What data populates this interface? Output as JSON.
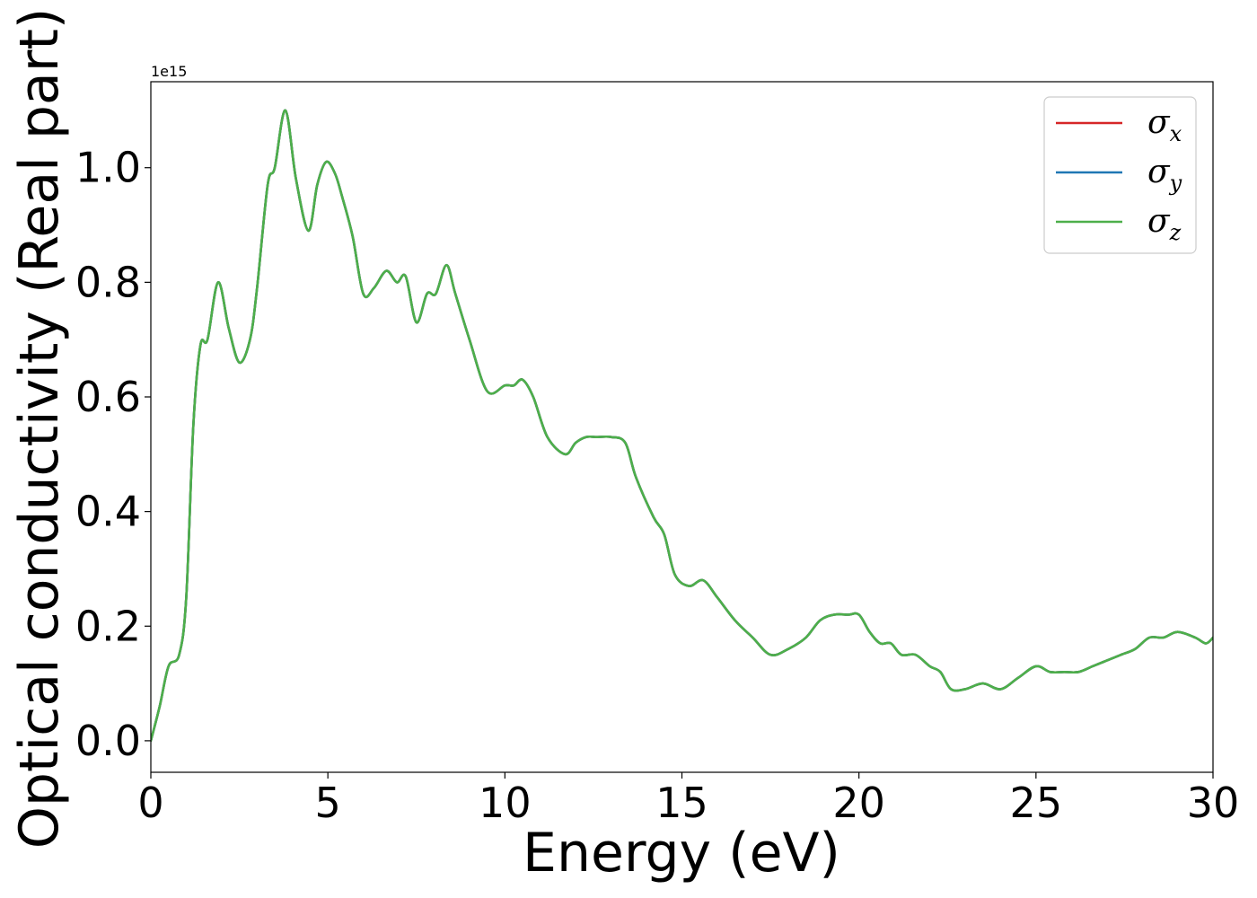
{
  "chart_data": {
    "type": "line",
    "xlabel": "Energy (eV)",
    "ylabel": "Optical conductivity (Real part)",
    "offset_text": "1e15",
    "xlim": [
      0,
      30
    ],
    "ylim": [
      -0.055,
      1.15
    ],
    "x_ticks": [
      0,
      5,
      10,
      15,
      20,
      25,
      30
    ],
    "x_tick_labels": [
      "0",
      "5",
      "10",
      "15",
      "20",
      "25",
      "30"
    ],
    "y_ticks": [
      0.0,
      0.2,
      0.4,
      0.6,
      0.8,
      1.0
    ],
    "y_tick_labels": [
      "0.0",
      "0.2",
      "0.4",
      "0.6",
      "0.8",
      "1.0"
    ],
    "grid": false,
    "legend_position": "top-right",
    "x": [
      0,
      0.25,
      0.5,
      0.8,
      1.0,
      1.2,
      1.4,
      1.6,
      1.9,
      2.2,
      2.5,
      2.8,
      3.0,
      3.3,
      3.5,
      3.8,
      4.1,
      4.45,
      4.7,
      4.95,
      5.2,
      5.4,
      5.7,
      6.0,
      6.3,
      6.65,
      6.95,
      7.2,
      7.5,
      7.8,
      8.05,
      8.35,
      8.6,
      9.0,
      9.5,
      10.0,
      10.25,
      10.5,
      10.8,
      11.2,
      11.7,
      12.0,
      12.3,
      12.6,
      13.0,
      13.4,
      13.7,
      14.2,
      14.5,
      14.8,
      15.2,
      15.6,
      16.0,
      16.5,
      17.0,
      17.5,
      18.0,
      18.5,
      18.9,
      19.3,
      19.7,
      20.0,
      20.3,
      20.6,
      20.9,
      21.2,
      21.6,
      22.0,
      22.3,
      22.6,
      23.0,
      23.5,
      24.0,
      24.5,
      25.0,
      25.4,
      25.8,
      26.2,
      26.6,
      27.0,
      27.4,
      27.8,
      28.2,
      28.6,
      29.0,
      29.5,
      29.8,
      30.0
    ],
    "series": [
      {
        "name": "σ",
        "subscript": "x",
        "color": "#d62728",
        "values": [
          0.0,
          0.06,
          0.13,
          0.15,
          0.25,
          0.55,
          0.69,
          0.7,
          0.8,
          0.72,
          0.66,
          0.7,
          0.79,
          0.97,
          1.0,
          1.1,
          0.98,
          0.89,
          0.97,
          1.01,
          0.99,
          0.95,
          0.88,
          0.78,
          0.79,
          0.82,
          0.8,
          0.81,
          0.73,
          0.78,
          0.78,
          0.83,
          0.78,
          0.7,
          0.61,
          0.62,
          0.62,
          0.63,
          0.6,
          0.53,
          0.5,
          0.52,
          0.53,
          0.53,
          0.53,
          0.52,
          0.46,
          0.39,
          0.36,
          0.29,
          0.27,
          0.28,
          0.25,
          0.21,
          0.18,
          0.15,
          0.16,
          0.18,
          0.21,
          0.22,
          0.22,
          0.22,
          0.19,
          0.17,
          0.17,
          0.15,
          0.15,
          0.13,
          0.12,
          0.09,
          0.09,
          0.1,
          0.09,
          0.11,
          0.13,
          0.12,
          0.12,
          0.12,
          0.13,
          0.14,
          0.15,
          0.16,
          0.18,
          0.18,
          0.19,
          0.18,
          0.17,
          0.18
        ]
      },
      {
        "name": "σ",
        "subscript": "y",
        "color": "#1f77b4",
        "values": [
          0.0,
          0.06,
          0.13,
          0.15,
          0.25,
          0.55,
          0.69,
          0.7,
          0.8,
          0.72,
          0.66,
          0.7,
          0.79,
          0.97,
          1.0,
          1.1,
          0.98,
          0.89,
          0.97,
          1.01,
          0.99,
          0.95,
          0.88,
          0.78,
          0.79,
          0.82,
          0.8,
          0.81,
          0.73,
          0.78,
          0.78,
          0.83,
          0.78,
          0.7,
          0.61,
          0.62,
          0.62,
          0.63,
          0.6,
          0.53,
          0.5,
          0.52,
          0.53,
          0.53,
          0.53,
          0.52,
          0.46,
          0.39,
          0.36,
          0.29,
          0.27,
          0.28,
          0.25,
          0.21,
          0.18,
          0.15,
          0.16,
          0.18,
          0.21,
          0.22,
          0.22,
          0.22,
          0.19,
          0.17,
          0.17,
          0.15,
          0.15,
          0.13,
          0.12,
          0.09,
          0.09,
          0.1,
          0.09,
          0.11,
          0.13,
          0.12,
          0.12,
          0.12,
          0.13,
          0.14,
          0.15,
          0.16,
          0.18,
          0.18,
          0.19,
          0.18,
          0.17,
          0.18
        ]
      },
      {
        "name": "σ",
        "subscript": "z",
        "color": "#4daf4a",
        "values": [
          0.0,
          0.06,
          0.13,
          0.15,
          0.25,
          0.55,
          0.69,
          0.7,
          0.8,
          0.72,
          0.66,
          0.7,
          0.79,
          0.97,
          1.0,
          1.1,
          0.98,
          0.89,
          0.97,
          1.01,
          0.99,
          0.95,
          0.88,
          0.78,
          0.79,
          0.82,
          0.8,
          0.81,
          0.73,
          0.78,
          0.78,
          0.83,
          0.78,
          0.7,
          0.61,
          0.62,
          0.62,
          0.63,
          0.6,
          0.53,
          0.5,
          0.52,
          0.53,
          0.53,
          0.53,
          0.52,
          0.46,
          0.39,
          0.36,
          0.29,
          0.27,
          0.28,
          0.25,
          0.21,
          0.18,
          0.15,
          0.16,
          0.18,
          0.21,
          0.22,
          0.22,
          0.22,
          0.19,
          0.17,
          0.17,
          0.15,
          0.15,
          0.13,
          0.12,
          0.09,
          0.09,
          0.1,
          0.09,
          0.11,
          0.13,
          0.12,
          0.12,
          0.12,
          0.13,
          0.14,
          0.15,
          0.16,
          0.18,
          0.18,
          0.19,
          0.18,
          0.17,
          0.18
        ]
      }
    ]
  }
}
